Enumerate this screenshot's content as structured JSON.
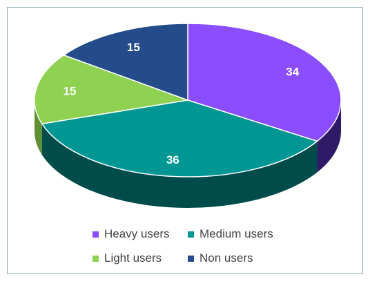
{
  "chart_data": {
    "type": "pie",
    "style": "3d",
    "categories": [
      "Heavy users",
      "Medium users",
      "Light users",
      "Non users"
    ],
    "values": [
      34,
      36,
      15,
      15
    ],
    "colors": [
      "#8A4DFF",
      "#009693",
      "#8FD150",
      "#254C8A"
    ],
    "side_colors": [
      "#2E1A66",
      "#004C4A",
      "#5D9033",
      "#152E55"
    ],
    "title": "",
    "legend_position": "bottom",
    "data_labels": true
  }
}
